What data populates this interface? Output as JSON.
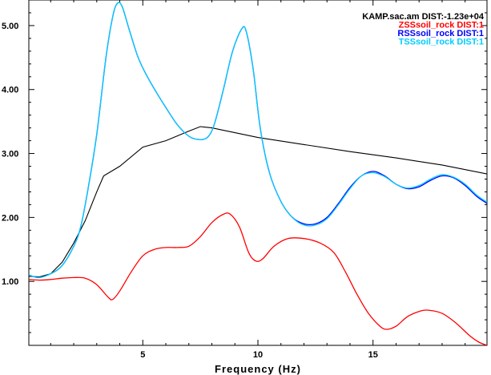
{
  "chart_data": {
    "type": "line",
    "xlabel": "Frequency (Hz)",
    "ylabel": "",
    "xlim": [
      0.05,
      19.95
    ],
    "ylim": [
      0.0,
      5.4
    ],
    "xticks": [
      {
        "value": 5,
        "label": "5"
      },
      {
        "value": 10,
        "label": "10"
      },
      {
        "value": 15,
        "label": "15"
      }
    ],
    "yticks": [
      {
        "value": 1.0,
        "label": "1.00"
      },
      {
        "value": 2.0,
        "label": "2.00"
      },
      {
        "value": 3.0,
        "label": "3.00"
      },
      {
        "value": 4.0,
        "label": "4.00"
      },
      {
        "value": 5.0,
        "label": "5.00"
      }
    ],
    "grid": false,
    "legend_position": "top-right",
    "series": [
      {
        "name": "KAMP.sac.am DIST:-1.23e+04",
        "color": "#000000",
        "points": [
          [
            0.05,
            1.08
          ],
          [
            0.5,
            1.07
          ],
          [
            1.0,
            1.12
          ],
          [
            1.5,
            1.3
          ],
          [
            2.0,
            1.6
          ],
          [
            2.5,
            1.95
          ],
          [
            3.0,
            2.4
          ],
          [
            3.3,
            2.65
          ],
          [
            4.0,
            2.8
          ],
          [
            5.0,
            3.1
          ],
          [
            6.0,
            3.2
          ],
          [
            7.0,
            3.35
          ],
          [
            7.5,
            3.42
          ],
          [
            8.0,
            3.4
          ],
          [
            10.0,
            3.25
          ],
          [
            12.0,
            3.14
          ],
          [
            14.0,
            3.03
          ],
          [
            16.0,
            2.93
          ],
          [
            18.0,
            2.82
          ],
          [
            19.95,
            2.68
          ]
        ]
      },
      {
        "name": "ZSSsoil_rock DIST:1",
        "color": "#ff0000",
        "points": [
          [
            0.05,
            1.03
          ],
          [
            0.5,
            1.02
          ],
          [
            1.0,
            1.03
          ],
          [
            1.5,
            1.05
          ],
          [
            2.0,
            1.06
          ],
          [
            2.5,
            1.05
          ],
          [
            3.0,
            0.95
          ],
          [
            3.5,
            0.75
          ],
          [
            3.7,
            0.72
          ],
          [
            4.0,
            0.85
          ],
          [
            4.5,
            1.15
          ],
          [
            5.0,
            1.4
          ],
          [
            5.5,
            1.5
          ],
          [
            6.0,
            1.53
          ],
          [
            6.5,
            1.53
          ],
          [
            7.0,
            1.55
          ],
          [
            7.5,
            1.7
          ],
          [
            8.0,
            1.92
          ],
          [
            8.5,
            2.05
          ],
          [
            8.8,
            2.05
          ],
          [
            9.2,
            1.85
          ],
          [
            9.6,
            1.45
          ],
          [
            9.9,
            1.32
          ],
          [
            10.2,
            1.35
          ],
          [
            10.7,
            1.55
          ],
          [
            11.3,
            1.67
          ],
          [
            12.0,
            1.67
          ],
          [
            12.7,
            1.6
          ],
          [
            13.3,
            1.45
          ],
          [
            13.8,
            1.15
          ],
          [
            14.3,
            0.8
          ],
          [
            14.8,
            0.5
          ],
          [
            15.3,
            0.3
          ],
          [
            15.6,
            0.25
          ],
          [
            16.0,
            0.3
          ],
          [
            16.5,
            0.45
          ],
          [
            17.0,
            0.53
          ],
          [
            17.4,
            0.55
          ],
          [
            18.0,
            0.5
          ],
          [
            18.6,
            0.35
          ],
          [
            19.2,
            0.15
          ],
          [
            19.6,
            0.05
          ],
          [
            19.95,
            0.0
          ]
        ]
      },
      {
        "name": "RSSsoil_rock DIST:1",
        "color": "#0000ff",
        "points": [
          [
            0.05,
            1.1
          ],
          [
            0.5,
            1.06
          ],
          [
            1.0,
            1.12
          ],
          [
            1.5,
            1.25
          ],
          [
            2.0,
            1.55
          ],
          [
            2.3,
            1.85
          ],
          [
            2.6,
            2.4
          ],
          [
            3.0,
            3.3
          ],
          [
            3.4,
            4.5
          ],
          [
            3.7,
            5.15
          ],
          [
            3.9,
            5.35
          ],
          [
            4.1,
            5.3
          ],
          [
            4.4,
            4.95
          ],
          [
            4.8,
            4.5
          ],
          [
            5.2,
            4.2
          ],
          [
            5.6,
            3.95
          ],
          [
            6.0,
            3.72
          ],
          [
            6.5,
            3.45
          ],
          [
            7.0,
            3.27
          ],
          [
            7.4,
            3.22
          ],
          [
            7.8,
            3.25
          ],
          [
            8.1,
            3.45
          ],
          [
            8.5,
            4.0
          ],
          [
            8.9,
            4.6
          ],
          [
            9.3,
            4.95
          ],
          [
            9.5,
            4.9
          ],
          [
            9.8,
            4.3
          ],
          [
            10.1,
            3.4
          ],
          [
            10.5,
            2.7
          ],
          [
            11.0,
            2.25
          ],
          [
            11.5,
            2.0
          ],
          [
            12.0,
            1.9
          ],
          [
            12.5,
            1.9
          ],
          [
            13.0,
            2.0
          ],
          [
            13.5,
            2.22
          ],
          [
            14.0,
            2.47
          ],
          [
            14.5,
            2.65
          ],
          [
            15.0,
            2.72
          ],
          [
            15.5,
            2.65
          ],
          [
            16.0,
            2.52
          ],
          [
            16.5,
            2.45
          ],
          [
            17.0,
            2.48
          ],
          [
            17.5,
            2.58
          ],
          [
            18.0,
            2.65
          ],
          [
            18.5,
            2.62
          ],
          [
            19.0,
            2.5
          ],
          [
            19.5,
            2.33
          ],
          [
            19.95,
            2.22
          ]
        ]
      },
      {
        "name": "TSSsoil_rock DIST:1",
        "color": "#00ccff",
        "points": [
          [
            0.05,
            1.1
          ],
          [
            0.5,
            1.06
          ],
          [
            1.0,
            1.12
          ],
          [
            1.5,
            1.25
          ],
          [
            2.0,
            1.55
          ],
          [
            2.3,
            1.85
          ],
          [
            2.6,
            2.4
          ],
          [
            3.0,
            3.3
          ],
          [
            3.4,
            4.5
          ],
          [
            3.7,
            5.15
          ],
          [
            3.9,
            5.35
          ],
          [
            4.1,
            5.3
          ],
          [
            4.4,
            4.95
          ],
          [
            4.8,
            4.5
          ],
          [
            5.2,
            4.2
          ],
          [
            5.6,
            3.95
          ],
          [
            6.0,
            3.72
          ],
          [
            6.5,
            3.45
          ],
          [
            7.0,
            3.27
          ],
          [
            7.4,
            3.22
          ],
          [
            7.8,
            3.25
          ],
          [
            8.1,
            3.45
          ],
          [
            8.5,
            4.0
          ],
          [
            8.9,
            4.6
          ],
          [
            9.3,
            4.95
          ],
          [
            9.5,
            4.9
          ],
          [
            9.8,
            4.3
          ],
          [
            10.1,
            3.4
          ],
          [
            10.5,
            2.7
          ],
          [
            11.0,
            2.25
          ],
          [
            11.5,
            2.0
          ],
          [
            12.0,
            1.88
          ],
          [
            12.5,
            1.88
          ],
          [
            13.0,
            1.98
          ],
          [
            13.5,
            2.2
          ],
          [
            14.0,
            2.45
          ],
          [
            14.5,
            2.65
          ],
          [
            15.0,
            2.7
          ],
          [
            15.5,
            2.64
          ],
          [
            16.0,
            2.52
          ],
          [
            16.5,
            2.46
          ],
          [
            17.0,
            2.5
          ],
          [
            17.5,
            2.6
          ],
          [
            18.0,
            2.67
          ],
          [
            18.5,
            2.63
          ],
          [
            19.0,
            2.52
          ],
          [
            19.5,
            2.35
          ],
          [
            19.95,
            2.24
          ]
        ]
      }
    ]
  }
}
